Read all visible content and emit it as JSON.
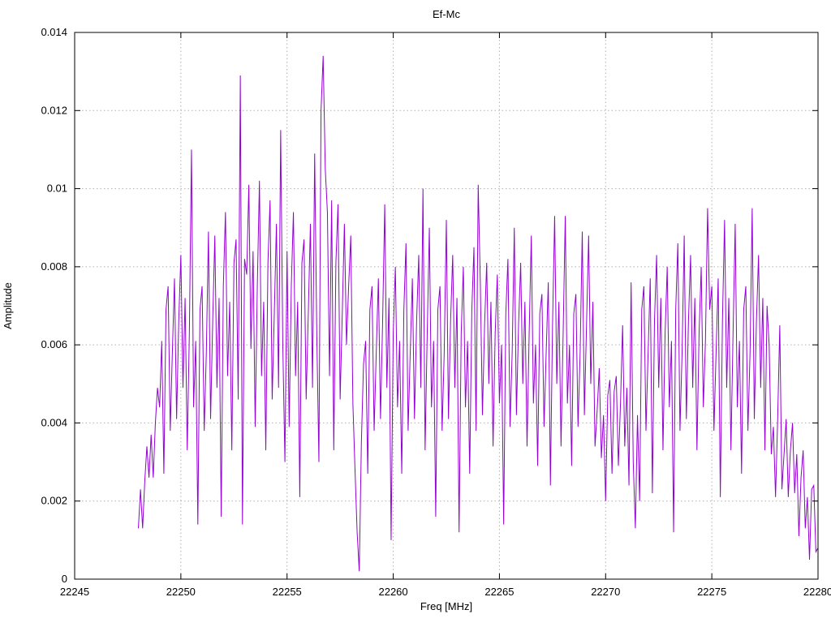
{
  "chart_data": {
    "type": "line",
    "title": "Ef-Mc",
    "xlabel": "Freq [MHz]",
    "ylabel": "Amplitude",
    "xlim": [
      22245,
      22280
    ],
    "ylim": [
      0,
      0.014
    ],
    "grid": "dotted",
    "legend": "none",
    "line_color": "#9400d3",
    "grid_color": "#b0b0b0",
    "axis_color": "#000000",
    "xticks": {
      "values": [
        22245,
        22250,
        22255,
        22260,
        22265,
        22270,
        22275,
        22280
      ],
      "labels": [
        "22245",
        "22250",
        "22255",
        "22260",
        "22265",
        "22270",
        "22275",
        "22280"
      ]
    },
    "yticks": {
      "values": [
        0,
        0.002,
        0.004,
        0.006,
        0.008,
        0.01,
        0.012,
        0.014
      ],
      "labels": [
        "0",
        "0.002",
        "0.004",
        "0.006",
        "0.008",
        "0.01",
        "0.012",
        "0.014"
      ]
    },
    "series": [
      {
        "name": "Ef-Mc",
        "x_start": 22248.0,
        "x_step": 0.1,
        "values": [
          0.0013,
          0.0023,
          0.0013,
          0.0025,
          0.0034,
          0.0026,
          0.0037,
          0.0026,
          0.004,
          0.0049,
          0.0044,
          0.0061,
          0.0027,
          0.0069,
          0.0075,
          0.0038,
          0.0058,
          0.0077,
          0.0041,
          0.0066,
          0.0083,
          0.0049,
          0.0072,
          0.0033,
          0.0063,
          0.011,
          0.0044,
          0.0061,
          0.0014,
          0.0069,
          0.0075,
          0.0038,
          0.0058,
          0.0089,
          0.0041,
          0.0066,
          0.0088,
          0.0049,
          0.0072,
          0.0016,
          0.0075,
          0.0094,
          0.0052,
          0.0071,
          0.0033,
          0.0081,
          0.0087,
          0.0046,
          0.0129,
          0.0014,
          0.0082,
          0.0078,
          0.0101,
          0.0059,
          0.0084,
          0.0039,
          0.0075,
          0.0102,
          0.0052,
          0.0071,
          0.0033,
          0.0081,
          0.0097,
          0.0046,
          0.0068,
          0.0091,
          0.0049,
          0.0115,
          0.006,
          0.003,
          0.0084,
          0.0039,
          0.0075,
          0.0094,
          0.0052,
          0.0071,
          0.0021,
          0.0081,
          0.0087,
          0.0046,
          0.0068,
          0.0091,
          0.0049,
          0.0109,
          0.0063,
          0.003,
          0.012,
          0.0134,
          0.0105,
          0.0094,
          0.0052,
          0.0097,
          0.0033,
          0.0081,
          0.0096,
          0.0046,
          0.0068,
          0.0091,
          0.006,
          0.0075,
          0.0088,
          0.0045,
          0.0028,
          0.0012,
          0.0002,
          0.0035,
          0.0055,
          0.0061,
          0.0027,
          0.0069,
          0.0075,
          0.0038,
          0.0058,
          0.0077,
          0.0041,
          0.0066,
          0.0096,
          0.0049,
          0.0072,
          0.001,
          0.0063,
          0.008,
          0.0044,
          0.0061,
          0.0027,
          0.0069,
          0.0086,
          0.0038,
          0.0058,
          0.0077,
          0.0041,
          0.0066,
          0.0083,
          0.0049,
          0.01,
          0.0033,
          0.0063,
          0.009,
          0.0044,
          0.0061,
          0.0016,
          0.0069,
          0.0075,
          0.0038,
          0.0058,
          0.0092,
          0.0041,
          0.0066,
          0.0083,
          0.0049,
          0.0072,
          0.0012,
          0.0063,
          0.008,
          0.0044,
          0.0061,
          0.0027,
          0.0069,
          0.0085,
          0.0038,
          0.0101,
          0.0076,
          0.0042,
          0.0065,
          0.0081,
          0.005,
          0.0071,
          0.0034,
          0.0063,
          0.0078,
          0.0045,
          0.006,
          0.0014,
          0.0068,
          0.0082,
          0.0039,
          0.0058,
          0.009,
          0.0042,
          0.0065,
          0.0081,
          0.005,
          0.0071,
          0.0034,
          0.0063,
          0.0088,
          0.0045,
          0.006,
          0.0029,
          0.0068,
          0.0073,
          0.0039,
          0.0058,
          0.0076,
          0.0024,
          0.0065,
          0.0093,
          0.005,
          0.0071,
          0.0034,
          0.0063,
          0.0093,
          0.0045,
          0.006,
          0.0029,
          0.0068,
          0.0073,
          0.0039,
          0.0058,
          0.0089,
          0.0042,
          0.0065,
          0.0088,
          0.005,
          0.0071,
          0.0034,
          0.0043,
          0.0054,
          0.0031,
          0.0042,
          0.002,
          0.0047,
          0.0051,
          0.0027,
          0.0048,
          0.0052,
          0.0029,
          0.0045,
          0.0065,
          0.0034,
          0.0049,
          0.0024,
          0.0076,
          0.003,
          0.0013,
          0.0042,
          0.002,
          0.0069,
          0.0075,
          0.0038,
          0.0058,
          0.0077,
          0.0022,
          0.0066,
          0.0083,
          0.0049,
          0.0072,
          0.0033,
          0.0063,
          0.008,
          0.0044,
          0.0061,
          0.0012,
          0.0069,
          0.0086,
          0.0038,
          0.0058,
          0.0088,
          0.0041,
          0.0066,
          0.0083,
          0.0049,
          0.0072,
          0.0033,
          0.0063,
          0.008,
          0.0044,
          0.0061,
          0.0095,
          0.0069,
          0.0075,
          0.0038,
          0.0058,
          0.0077,
          0.0021,
          0.0066,
          0.0092,
          0.0049,
          0.0072,
          0.0033,
          0.0063,
          0.0091,
          0.0044,
          0.0061,
          0.0027,
          0.0069,
          0.0075,
          0.0038,
          0.0058,
          0.0095,
          0.0041,
          0.0066,
          0.0083,
          0.0049,
          0.0072,
          0.0033,
          0.007,
          0.006,
          0.0032,
          0.0039,
          0.0021,
          0.0041,
          0.0065,
          0.0023,
          0.0032,
          0.0041,
          0.0021,
          0.0033,
          0.004,
          0.0022,
          0.0032,
          0.0011,
          0.0026,
          0.0033,
          0.0013,
          0.0021,
          0.0005,
          0.0023,
          0.0024,
          0.0007,
          0.0008
        ]
      }
    ]
  }
}
